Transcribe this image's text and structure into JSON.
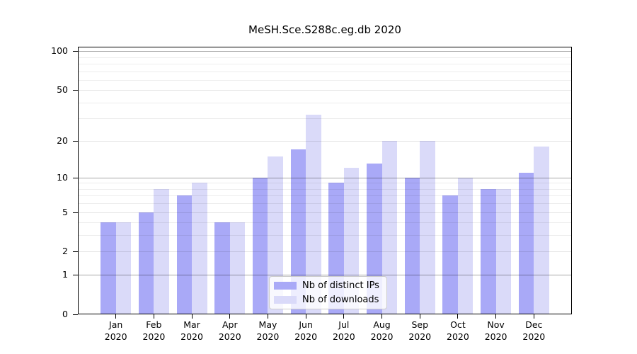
{
  "chart_data": {
    "type": "bar",
    "title": "MeSH.Sce.S288c.eg.db 2020",
    "categories": [
      "Jan",
      "Feb",
      "Mar",
      "Apr",
      "May",
      "Jun",
      "Jul",
      "Aug",
      "Sep",
      "Oct",
      "Nov",
      "Dec"
    ],
    "year_label": "2020",
    "series": [
      {
        "name": "Nb of distinct IPs",
        "color": "#a9a9f7",
        "values": [
          4,
          5,
          7,
          4,
          10,
          17,
          9,
          13,
          10,
          7,
          8,
          11
        ]
      },
      {
        "name": "Nb of downloads",
        "color": "#dadaf9",
        "values": [
          4,
          8,
          9,
          4,
          15,
          32,
          12,
          20,
          20,
          10,
          8,
          18
        ]
      }
    ],
    "yscale": "log1p",
    "ylim": [
      0,
      108
    ],
    "yticks": [
      0,
      1,
      2,
      5,
      10,
      20,
      50,
      100
    ],
    "major_gridline_ticks": [
      1,
      10,
      100
    ],
    "minor_gridlines": [
      3,
      4,
      6,
      7,
      8,
      9,
      30,
      40,
      60,
      70,
      80,
      90
    ],
    "bar_width": 21.5,
    "grid": "on",
    "legend_position": "lower center inside plot"
  }
}
